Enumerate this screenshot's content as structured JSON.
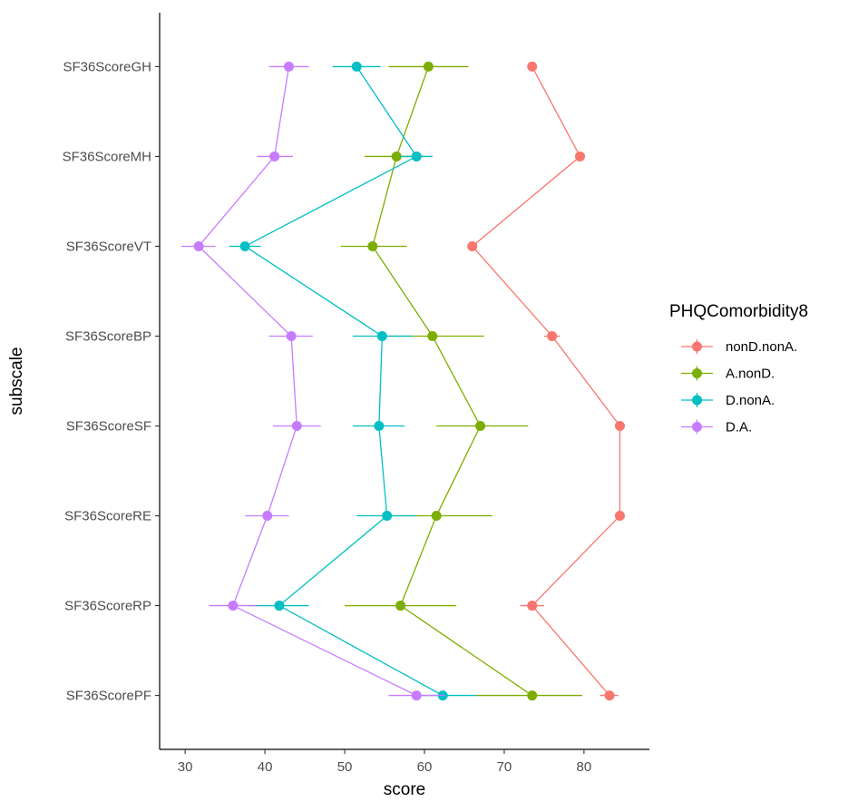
{
  "chart_data": {
    "type": "scatter",
    "xlabel": "score",
    "ylabel": "subscale",
    "xlim": [
      26.8,
      88.2
    ],
    "x_ticks": [
      30,
      40,
      50,
      60,
      70,
      80
    ],
    "x_tick_labels": [
      "30",
      "40",
      "50",
      "60",
      "70",
      "80"
    ],
    "categories": [
      "SF36ScoreGH",
      "SF36ScoreMH",
      "SF36ScoreVT",
      "SF36ScoreBP",
      "SF36ScoreSF",
      "SF36ScoreRE",
      "SF36ScoreRP",
      "SF36ScorePF"
    ],
    "grid": false,
    "legend": {
      "title": "PHQComorbidity8",
      "position": "right"
    },
    "series": [
      {
        "name": "nonD.nonA.",
        "color": "#F8766D",
        "values": [
          73.5,
          79.5,
          66.0,
          76.0,
          84.5,
          84.5,
          73.5,
          83.2
        ],
        "err_low": [
          73.0,
          79.0,
          65.5,
          75.0,
          84.0,
          84.0,
          72.0,
          82.0
        ],
        "err_high": [
          74.0,
          80.0,
          66.5,
          77.0,
          85.0,
          85.0,
          75.0,
          84.3
        ]
      },
      {
        "name": "A.nonD.",
        "color": "#7CAE00",
        "values": [
          60.5,
          56.5,
          53.5,
          61.0,
          67.0,
          61.5,
          57.0,
          73.5
        ],
        "err_low": [
          55.5,
          52.5,
          49.5,
          54.5,
          61.5,
          55.0,
          50.0,
          66.5
        ],
        "err_high": [
          65.5,
          60.0,
          57.8,
          67.5,
          73.0,
          68.5,
          64.0,
          79.8
        ]
      },
      {
        "name": "D.nonA.",
        "color": "#00BFC4",
        "values": [
          51.5,
          59.0,
          37.5,
          54.7,
          54.3,
          55.3,
          41.8,
          62.3
        ],
        "err_low": [
          48.5,
          57.0,
          35.5,
          51.0,
          51.0,
          51.5,
          38.0,
          58.5
        ],
        "err_high": [
          54.5,
          61.0,
          39.5,
          58.5,
          57.5,
          59.0,
          45.5,
          66.5
        ]
      },
      {
        "name": "D.A.",
        "color": "#C77CFF",
        "values": [
          43.0,
          41.2,
          31.7,
          43.3,
          44.0,
          40.3,
          36.0,
          59.0
        ],
        "err_low": [
          40.5,
          39.0,
          29.5,
          40.5,
          41.0,
          37.5,
          33.0,
          55.5
        ],
        "err_high": [
          45.5,
          43.5,
          33.8,
          46.0,
          47.0,
          43.0,
          39.0,
          62.5
        ]
      }
    ]
  }
}
